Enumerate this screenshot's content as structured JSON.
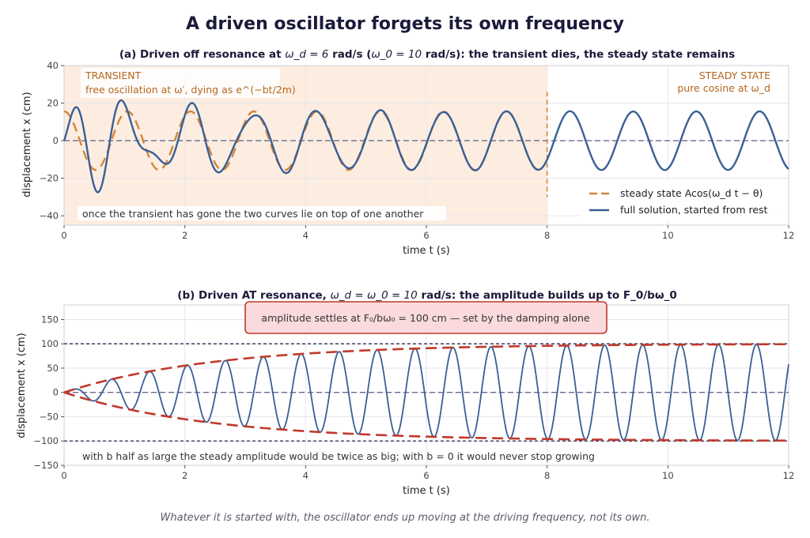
{
  "figure": {
    "title": "A driven oscillator forgets its own frequency",
    "footnote": "Whatever it is started with, the oscillator ends up moving at the driving frequency, not its own."
  },
  "colors": {
    "steady": "#d4843a",
    "full": "#3a5f96",
    "envelope": "#c0392b",
    "guide": "#6a6a8a",
    "transient_fill": "#fcede0",
    "box_fill": "#fadadd",
    "box_border": "#c0392b"
  },
  "chart_data": [
    {
      "type": "line",
      "panel": "a",
      "title_prefix": "(a)  Driven off resonance at ",
      "title_math": "ω_d = 6",
      "title_mid": " rad/s (",
      "title_math2": "ω_0 = 10",
      "title_suffix": " rad/s):  the transient dies, the steady state remains",
      "xlabel": "time t (s)",
      "ylabel": "displacement x (cm)",
      "xlim": [
        0,
        12
      ],
      "ylim": [
        -45,
        40
      ],
      "xticks": [
        0,
        2,
        4,
        6,
        8,
        10,
        12
      ],
      "yticks": [
        -40,
        -20,
        0,
        20,
        40
      ],
      "grid": true,
      "legend_placement": "lower-right",
      "regions": [
        {
          "x0": 0,
          "x1": 8,
          "label_title": "TRANSIENT",
          "label_sub": "free oscillation at ω′, dying as e^(−bt/2m)"
        },
        {
          "x0": 8,
          "x1": 12,
          "label_title": "STEADY STATE",
          "label_sub": "pure cosine at ω_d"
        }
      ],
      "annotation": "once the transient has gone the two curves lie on top of one another",
      "params": {
        "omega_d": 6,
        "omega_0": 10,
        "amplitude": 15.6,
        "decay": 0.6
      },
      "series": [
        {
          "name": "steady state  Acos(ω_d t − θ)",
          "style": "dashed",
          "x_range": [
            0,
            8
          ]
        },
        {
          "name": "full solution, started from rest",
          "style": "solid",
          "x_range": [
            0,
            12
          ]
        }
      ]
    },
    {
      "type": "line",
      "panel": "b",
      "title_prefix": "(b)  Driven AT resonance, ",
      "title_math": "ω_d = ω_0 = 10",
      "title_suffix": " rad/s:  the amplitude builds up to F_0/bω_0",
      "xlabel": "time t (s)",
      "ylabel": "displacement x (cm)",
      "xlim": [
        0,
        12
      ],
      "ylim": [
        -150,
        180
      ],
      "xticks": [
        0,
        2,
        4,
        6,
        8,
        10,
        12
      ],
      "yticks": [
        -150,
        -100,
        -50,
        0,
        50,
        100,
        150
      ],
      "grid": true,
      "box_text": "amplitude settles at F₀/bω₀ = 100 cm  —  set by the damping alone",
      "annotation": "with b half as large the steady amplitude would be twice as big; with b = 0 it would never stop growing",
      "params": {
        "omega": 10,
        "A_inf": 100,
        "tau": 2.5
      },
      "series": [
        {
          "name": "envelope",
          "style": "dashed"
        },
        {
          "name": "response",
          "style": "solid"
        }
      ],
      "guides": [
        100,
        -100
      ]
    }
  ]
}
